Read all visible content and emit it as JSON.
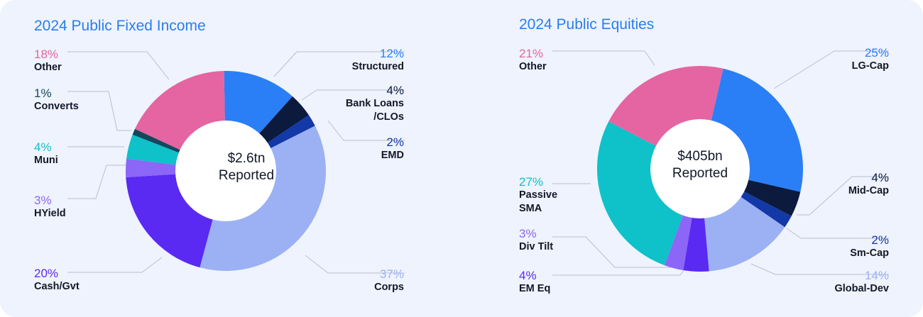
{
  "chart_data": [
    {
      "type": "pie",
      "title": "2024 Public Fixed Income",
      "center_value": "$2.6tn",
      "center_label": "Reported",
      "slices": [
        {
          "label": "Structured",
          "pct_label": "12%",
          "value": 12,
          "color": "#2a7ff6"
        },
        {
          "label": "Bank Loans /CLOs",
          "pct_label": "4%",
          "value": 4,
          "color": "#0b1a3d"
        },
        {
          "label": "EMD",
          "pct_label": "2%",
          "value": 2,
          "color": "#1338a8"
        },
        {
          "label": "Corps",
          "pct_label": "37%",
          "value": 37,
          "color": "#9bb1f3"
        },
        {
          "label": "Cash/Gvt",
          "pct_label": "20%",
          "value": 20,
          "color": "#5a2af2"
        },
        {
          "label": "HYield",
          "pct_label": "3%",
          "value": 3,
          "color": "#8c66f6"
        },
        {
          "label": "Muni",
          "pct_label": "4%",
          "value": 4,
          "color": "#0fc1c9"
        },
        {
          "label": "Converts",
          "pct_label": "1%",
          "value": 1,
          "color": "#13485b"
        },
        {
          "label": "Other",
          "pct_label": "18%",
          "value": 18,
          "color": "#e564a2"
        }
      ]
    },
    {
      "type": "pie",
      "title": "2024 Public Equities",
      "center_value": "$405bn",
      "center_label": "Reported",
      "slices": [
        {
          "label": "LG-Cap",
          "pct_label": "25%",
          "value": 25,
          "color": "#2a7ff6"
        },
        {
          "label": "Mid-Cap",
          "pct_label": "4%",
          "value": 4,
          "color": "#0b1a3d"
        },
        {
          "label": "Sm-Cap",
          "pct_label": "2%",
          "value": 2,
          "color": "#1338a8"
        },
        {
          "label": "Global-Dev",
          "pct_label": "14%",
          "value": 14,
          "color": "#9bb1f3"
        },
        {
          "label": "EM Eq",
          "pct_label": "4%",
          "value": 4,
          "color": "#5a2af2"
        },
        {
          "label": "Div Tilt",
          "pct_label": "3%",
          "value": 3,
          "color": "#8c66f6"
        },
        {
          "label": "Passive SMA",
          "pct_label": "27%",
          "value": 27,
          "color": "#0fc1c9"
        },
        {
          "label": "Other",
          "pct_label": "21%",
          "value": 21,
          "color": "#e564a2"
        }
      ]
    }
  ]
}
